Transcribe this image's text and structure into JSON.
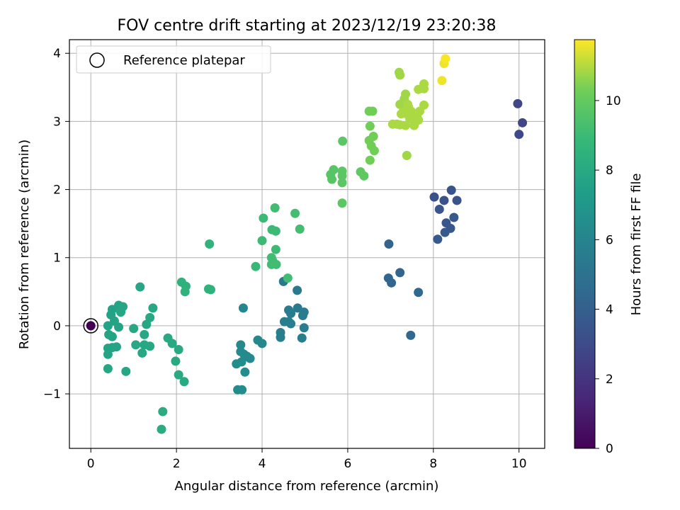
{
  "chart_data": {
    "type": "scatter",
    "title": "FOV centre drift starting at 2023/12/19 23:20:38",
    "xlabel": "Angular distance from reference (arcmin)",
    "ylabel": "Rotation from reference (arcmin)",
    "xlim": [
      -0.5,
      10.6
    ],
    "ylim": [
      -1.8,
      4.2
    ],
    "x_ticks": [
      0,
      2,
      4,
      6,
      8,
      10
    ],
    "x_tick_labels": [
      "0",
      "2",
      "4",
      "6",
      "8",
      "10"
    ],
    "y_ticks": [
      -1,
      0,
      1,
      2,
      3,
      4
    ],
    "y_tick_labels": [
      "−1",
      "0",
      "1",
      "2",
      "3",
      "4"
    ],
    "grid": true,
    "legend": {
      "placement": "top-left",
      "entries": [
        "Reference platepar"
      ]
    },
    "colorbar": {
      "label": "Hours from first FF file",
      "colormap": "viridis",
      "range": [
        0,
        11.75
      ],
      "ticks": [
        0,
        2,
        4,
        6,
        8,
        10
      ],
      "tick_labels": [
        "0",
        "2",
        "4",
        "6",
        "8",
        "10"
      ]
    },
    "reference_point": {
      "x": 0,
      "y": 0,
      "hours": 0
    },
    "points": [
      [
        9.97,
        3.26,
        2.7
      ],
      [
        10.08,
        2.98,
        2.8
      ],
      [
        10.0,
        2.81,
        2.9
      ],
      [
        8.02,
        1.89,
        3.3
      ],
      [
        8.25,
        1.84,
        3.3
      ],
      [
        8.42,
        1.99,
        3.4
      ],
      [
        8.55,
        1.84,
        3.4
      ],
      [
        8.14,
        1.71,
        3.5
      ],
      [
        8.3,
        1.51,
        3.5
      ],
      [
        8.48,
        1.59,
        3.6
      ],
      [
        8.4,
        1.43,
        3.6
      ],
      [
        8.27,
        1.37,
        3.7
      ],
      [
        8.1,
        1.27,
        3.7
      ],
      [
        6.96,
        1.2,
        4.2
      ],
      [
        6.95,
        0.7,
        4.3
      ],
      [
        7.02,
        0.63,
        4.3
      ],
      [
        7.22,
        0.78,
        4.3
      ],
      [
        7.65,
        0.49,
        4.4
      ],
      [
        7.47,
        -0.14,
        4.4
      ],
      [
        4.5,
        0.65,
        5.3
      ],
      [
        4.82,
        0.52,
        5.4
      ],
      [
        4.83,
        0.26,
        5.4
      ],
      [
        4.62,
        0.23,
        5.5
      ],
      [
        4.67,
        0.18,
        5.5
      ],
      [
        4.98,
        0.2,
        5.5
      ],
      [
        4.95,
        0.15,
        5.5
      ],
      [
        4.52,
        0.06,
        5.6
      ],
      [
        4.62,
        0.06,
        5.6
      ],
      [
        4.67,
        0.03,
        5.6
      ],
      [
        4.98,
        -0.03,
        5.6
      ],
      [
        4.43,
        -0.1,
        5.7
      ],
      [
        4.43,
        -0.17,
        5.7
      ],
      [
        4.93,
        -0.18,
        5.7
      ],
      [
        3.56,
        0.26,
        6.1
      ],
      [
        3.9,
        -0.21,
        6.2
      ],
      [
        4.0,
        -0.26,
        6.2
      ],
      [
        3.5,
        -0.28,
        6.2
      ],
      [
        3.5,
        -0.38,
        6.3
      ],
      [
        3.58,
        -0.42,
        6.3
      ],
      [
        3.65,
        -0.45,
        6.3
      ],
      [
        3.72,
        -0.48,
        6.3
      ],
      [
        3.52,
        -0.53,
        6.4
      ],
      [
        3.4,
        -0.56,
        6.4
      ],
      [
        3.6,
        -0.68,
        6.4
      ],
      [
        3.43,
        -0.94,
        6.4
      ],
      [
        3.53,
        -0.94,
        6.4
      ],
      [
        0.4,
        0.0,
        7.6
      ],
      [
        0.47,
        0.16,
        7.6
      ],
      [
        0.5,
        0.24,
        7.6
      ],
      [
        0.55,
        0.07,
        7.7
      ],
      [
        0.42,
        -0.13,
        7.7
      ],
      [
        0.5,
        -0.16,
        7.7
      ],
      [
        0.4,
        -0.33,
        7.7
      ],
      [
        0.4,
        -0.42,
        7.7
      ],
      [
        0.5,
        -0.32,
        7.7
      ],
      [
        0.6,
        -0.31,
        7.7
      ],
      [
        0.65,
        -0.02,
        7.7
      ],
      [
        0.65,
        0.3,
        7.7
      ],
      [
        0.7,
        0.2,
        7.8
      ],
      [
        0.75,
        0.28,
        7.8
      ],
      [
        0.4,
        -0.63,
        7.8
      ],
      [
        0.82,
        -0.67,
        7.8
      ],
      [
        1.15,
        0.57,
        7.8
      ],
      [
        1.0,
        -0.04,
        7.9
      ],
      [
        1.05,
        -0.28,
        7.9
      ],
      [
        1.25,
        -0.28,
        7.9
      ],
      [
        1.2,
        -0.4,
        7.9
      ],
      [
        1.25,
        -0.13,
        7.9
      ],
      [
        1.3,
        0.02,
        7.9
      ],
      [
        1.38,
        0.12,
        7.9
      ],
      [
        1.45,
        0.26,
        7.9
      ],
      [
        1.38,
        -0.3,
        7.9
      ],
      [
        1.8,
        -0.18,
        8.0
      ],
      [
        1.9,
        -0.26,
        8.0
      ],
      [
        2.05,
        -0.35,
        8.0
      ],
      [
        1.98,
        -0.52,
        8.0
      ],
      [
        2.05,
        -0.72,
        8.0
      ],
      [
        2.18,
        -0.82,
        8.0
      ],
      [
        1.68,
        -1.26,
        8.1
      ],
      [
        1.65,
        -1.52,
        8.1
      ],
      [
        2.12,
        0.64,
        8.4
      ],
      [
        2.22,
        0.58,
        8.4
      ],
      [
        2.2,
        0.5,
        8.5
      ],
      [
        2.75,
        0.54,
        8.5
      ],
      [
        2.8,
        0.53,
        8.5
      ],
      [
        2.77,
        1.2,
        8.6
      ],
      [
        3.85,
        0.87,
        8.9
      ],
      [
        4.0,
        1.25,
        9.0
      ],
      [
        4.03,
        1.58,
        9.0
      ],
      [
        4.23,
        1.41,
        9.0
      ],
      [
        4.32,
        1.39,
        9.0
      ],
      [
        4.32,
        1.12,
        9.0
      ],
      [
        4.22,
        1.0,
        9.1
      ],
      [
        4.25,
        0.95,
        9.1
      ],
      [
        4.22,
        0.9,
        9.1
      ],
      [
        4.33,
        0.9,
        9.1
      ],
      [
        4.3,
        1.73,
        9.1
      ],
      [
        4.6,
        0.7,
        9.1
      ],
      [
        4.77,
        1.65,
        9.2
      ],
      [
        4.88,
        1.42,
        9.2
      ],
      [
        5.6,
        2.22,
        9.7
      ],
      [
        5.67,
        2.29,
        9.7
      ],
      [
        5.63,
        2.15,
        9.7
      ],
      [
        5.88,
        2.71,
        9.8
      ],
      [
        5.87,
        2.27,
        9.8
      ],
      [
        5.87,
        2.2,
        9.8
      ],
      [
        5.87,
        2.1,
        9.8
      ],
      [
        5.87,
        1.8,
        9.8
      ],
      [
        6.3,
        2.26,
        9.9
      ],
      [
        6.38,
        2.2,
        9.9
      ],
      [
        6.5,
        3.15,
        10.3
      ],
      [
        6.58,
        3.15,
        10.3
      ],
      [
        6.52,
        2.93,
        10.3
      ],
      [
        6.5,
        2.72,
        10.3
      ],
      [
        6.6,
        2.78,
        10.3
      ],
      [
        6.55,
        2.64,
        10.3
      ],
      [
        6.62,
        2.57,
        10.3
      ],
      [
        6.52,
        2.43,
        10.3
      ],
      [
        7.2,
        3.72,
        10.8
      ],
      [
        7.22,
        3.68,
        10.8
      ],
      [
        7.35,
        3.4,
        10.8
      ],
      [
        7.32,
        3.33,
        10.8
      ],
      [
        7.22,
        3.25,
        10.8
      ],
      [
        7.4,
        3.25,
        10.9
      ],
      [
        7.42,
        3.21,
        10.9
      ],
      [
        7.3,
        3.15,
        10.9
      ],
      [
        7.25,
        3.11,
        10.9
      ],
      [
        7.4,
        3.1,
        10.9
      ],
      [
        7.48,
        3.15,
        10.9
      ],
      [
        7.05,
        2.96,
        10.9
      ],
      [
        7.15,
        2.96,
        10.9
      ],
      [
        7.22,
        2.95,
        10.9
      ],
      [
        7.35,
        2.94,
        10.9
      ],
      [
        7.55,
        2.94,
        10.9
      ],
      [
        7.45,
        3.04,
        10.9
      ],
      [
        7.62,
        3.06,
        10.9
      ],
      [
        7.68,
        3.15,
        10.9
      ],
      [
        7.65,
        3.02,
        10.9
      ],
      [
        7.65,
        3.47,
        10.9
      ],
      [
        7.78,
        3.48,
        10.9
      ],
      [
        7.78,
        3.55,
        10.9
      ],
      [
        7.38,
        2.5,
        10.8
      ],
      [
        7.78,
        3.24,
        10.9
      ],
      [
        8.2,
        3.6,
        11.6
      ],
      [
        8.25,
        3.85,
        11.6
      ],
      [
        8.28,
        3.92,
        11.7
      ]
    ]
  }
}
